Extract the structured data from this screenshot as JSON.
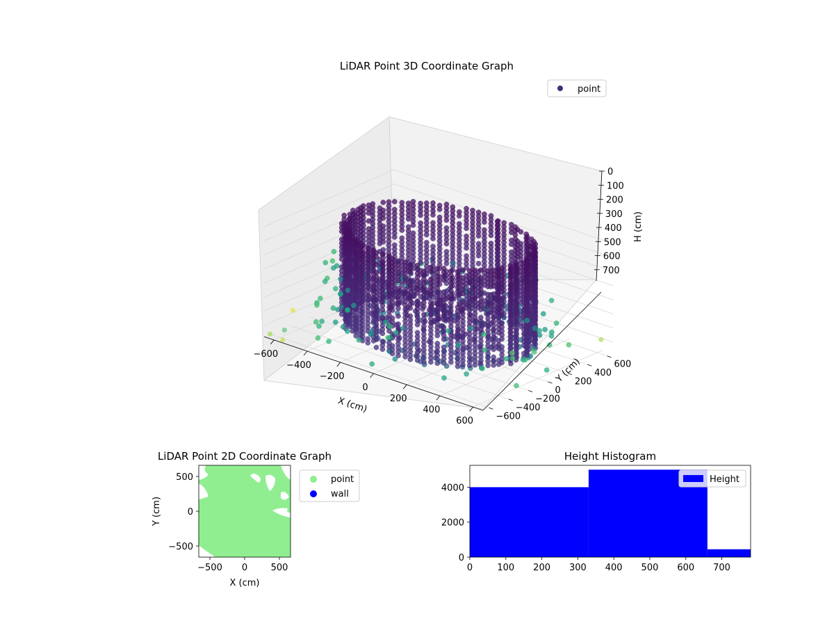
{
  "chart_data": [
    {
      "type": "scatter3d",
      "title": "LiDAR Point 3D Coordinate Graph",
      "xlabel": "X (cm)",
      "ylabel": "Y (cm)",
      "zlabel": "H (cm)",
      "xticks": [
        "−600",
        "−400",
        "−200",
        "0",
        "200",
        "400",
        "600"
      ],
      "yticks": [
        "−600",
        "−400",
        "−200",
        "0",
        "200",
        "400",
        "600"
      ],
      "zticks": [
        "0",
        "100",
        "200",
        "300",
        "400",
        "500",
        "600",
        "700"
      ],
      "xlim": [
        -660,
        660
      ],
      "ylim": [
        -660,
        660
      ],
      "zlim": [
        0,
        780
      ],
      "z_inverted": true,
      "colormap": "viridis",
      "legend": {
        "label": "point",
        "color": "#472d7b",
        "placement": "upper-right"
      },
      "grid": true,
      "description_shape": "ring-shaped wall of points about 500 cm radius spanning 0-700 cm height, with scattered outliers"
    },
    {
      "type": "scatter",
      "title": "LiDAR Point 2D Coordinate Graph",
      "xlabel": "X (cm)",
      "ylabel": "Y (cm)",
      "xticks": [
        "−500",
        "0",
        "500"
      ],
      "yticks": [
        "500",
        "0",
        "−500"
      ],
      "xlim": [
        -660,
        660
      ],
      "ylim": [
        -660,
        660
      ],
      "series": [
        {
          "name": "point",
          "color": "#90ee90"
        },
        {
          "name": "wall",
          "color": "#0000ff"
        }
      ],
      "legend_placement": "outside-right"
    },
    {
      "type": "bar",
      "title": "Height Histogram",
      "bins": [
        [
          0,
          330
        ],
        [
          330,
          660
        ],
        [
          660,
          780
        ]
      ],
      "values": [
        4000,
        5000,
        450
      ],
      "xticks": [
        "0",
        "100",
        "200",
        "300",
        "400",
        "500",
        "600",
        "700"
      ],
      "yticks": [
        "0",
        "2000",
        "4000"
      ],
      "xlim": [
        0,
        780
      ],
      "ylim": [
        0,
        5250
      ],
      "color": "#0000ff",
      "legend": {
        "label": "Height",
        "placement": "upper-right"
      }
    }
  ]
}
